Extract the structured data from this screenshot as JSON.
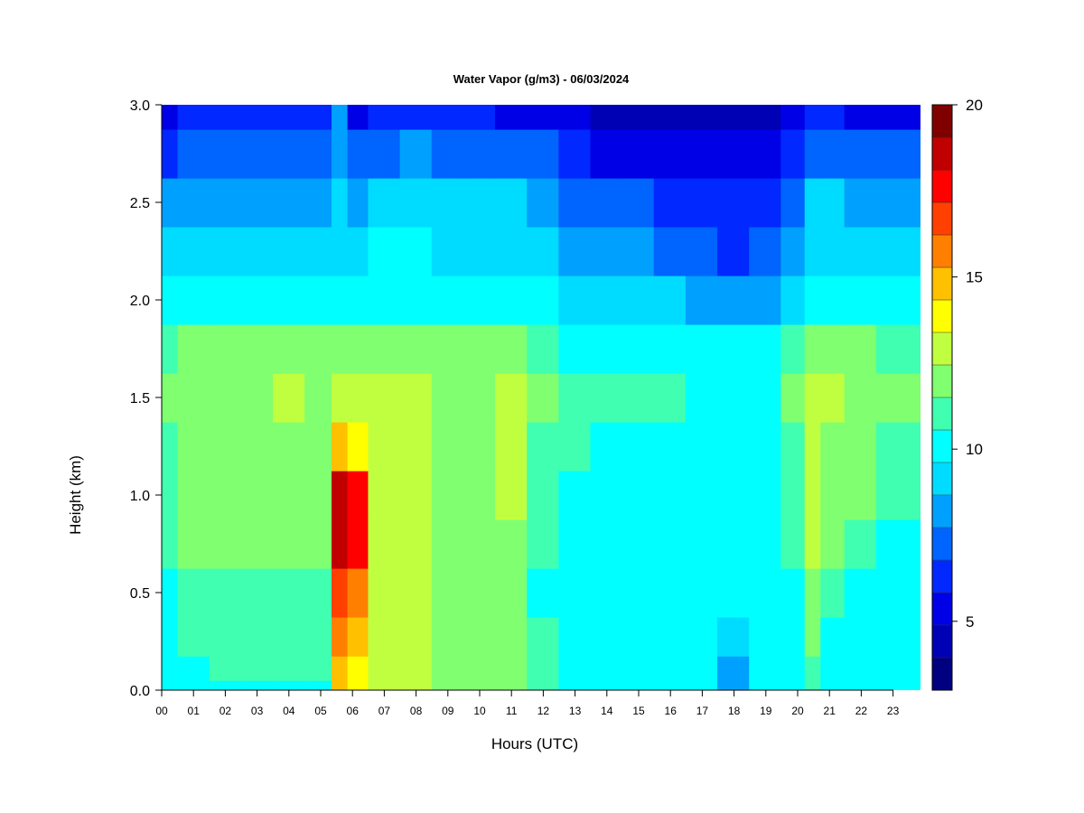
{
  "chart_data": {
    "type": "heatmap",
    "title": "Water Vapor (g/m3) - 06/03/2024",
    "xlabel": "Hours (UTC)",
    "ylabel": "Height (km)",
    "x_ticks": [
      "00",
      "01",
      "02",
      "03",
      "04",
      "05",
      "06",
      "07",
      "08",
      "09",
      "10",
      "11",
      "12",
      "13",
      "14",
      "15",
      "16",
      "17",
      "18",
      "19",
      "20",
      "21",
      "22",
      "23"
    ],
    "y_ticks": [
      "0.0",
      "0.5",
      "1.0",
      "1.5",
      "2.0",
      "2.5",
      "3.0"
    ],
    "xlim": [
      0,
      23.9
    ],
    "ylim": [
      0,
      3.0
    ],
    "colorbar": {
      "range": [
        3,
        20
      ],
      "ticks": [
        "5",
        "10",
        "15",
        "20"
      ],
      "colors": [
        "#000080",
        "#0000b4",
        "#0000e6",
        "#0028ff",
        "#0064ff",
        "#00a0ff",
        "#00dcff",
        "#00ffff",
        "#40ffb0",
        "#80ff70",
        "#c0ff40",
        "#ffff00",
        "#ffc000",
        "#ff8000",
        "#ff4000",
        "#ff0000",
        "#c00000",
        "#800000"
      ]
    },
    "column_times_utc": [
      0,
      1,
      2,
      3,
      4,
      5,
      5.7,
      6,
      7,
      8,
      9,
      10,
      11,
      12,
      13,
      14,
      15,
      16,
      17,
      18,
      19,
      20,
      20.5,
      21,
      22,
      23
    ],
    "height_levels_km": [
      0.0,
      0.1,
      0.25,
      0.5,
      0.75,
      1.0,
      1.25,
      1.5,
      1.75,
      2.0,
      2.25,
      2.5,
      2.75,
      3.0
    ],
    "values_gm3": [
      [
        10.5,
        10.5,
        10.5,
        10.5,
        10.5,
        10.5,
        15.0,
        14.0,
        12.5,
        12.5,
        12.0,
        12.0,
        12.0,
        11.0,
        10.5,
        10.0,
        10.0,
        10.0,
        10.0,
        8.5,
        10.0,
        10.0,
        11.0,
        10.5,
        10.5,
        10.5
      ],
      [
        10.5,
        10.5,
        11.0,
        11.0,
        11.0,
        11.0,
        15.0,
        14.0,
        12.5,
        12.5,
        12.0,
        12.0,
        12.0,
        11.0,
        10.5,
        10.0,
        10.0,
        10.0,
        10.0,
        8.5,
        10.0,
        10.0,
        11.0,
        10.5,
        10.5,
        10.5
      ],
      [
        10.5,
        11.0,
        11.0,
        11.0,
        11.0,
        11.0,
        16.0,
        15.0,
        12.5,
        12.5,
        12.0,
        12.0,
        12.0,
        11.0,
        10.0,
        10.0,
        10.0,
        10.0,
        10.0,
        9.5,
        10.0,
        10.0,
        11.5,
        10.5,
        10.5,
        10.0
      ],
      [
        10.5,
        11.0,
        11.0,
        11.0,
        11.0,
        11.0,
        17.0,
        16.0,
        12.5,
        12.5,
        11.5,
        11.5,
        11.5,
        10.5,
        10.5,
        10.5,
        10.5,
        10.5,
        10.5,
        10.0,
        10.0,
        10.5,
        12.0,
        11.0,
        10.5,
        10.0
      ],
      [
        11.0,
        11.5,
        11.5,
        11.5,
        12.0,
        11.5,
        19.0,
        18.0,
        12.5,
        13.0,
        12.0,
        11.5,
        12.0,
        11.0,
        10.5,
        10.5,
        10.5,
        10.5,
        10.5,
        10.5,
        10.5,
        11.0,
        12.5,
        11.5,
        11.0,
        10.5
      ],
      [
        11.0,
        11.5,
        12.0,
        12.0,
        12.0,
        11.5,
        19.0,
        18.0,
        12.5,
        13.0,
        12.0,
        12.0,
        12.5,
        11.0,
        10.5,
        10.5,
        10.5,
        10.5,
        10.5,
        10.5,
        10.5,
        11.0,
        13.0,
        12.0,
        11.5,
        11.0
      ],
      [
        11.0,
        11.5,
        12.0,
        12.0,
        12.0,
        12.0,
        15.0,
        14.0,
        12.5,
        13.0,
        12.0,
        12.0,
        12.5,
        11.0,
        11.0,
        10.5,
        10.5,
        10.5,
        10.5,
        10.5,
        10.5,
        11.0,
        13.0,
        12.0,
        11.5,
        11.0
      ],
      [
        11.5,
        12.0,
        12.0,
        12.0,
        12.5,
        12.0,
        12.5,
        12.5,
        12.5,
        13.0,
        12.0,
        12.0,
        13.0,
        11.5,
        11.0,
        11.0,
        11.0,
        11.0,
        10.5,
        10.5,
        10.5,
        11.5,
        13.0,
        12.5,
        12.0,
        11.5
      ],
      [
        11.0,
        11.5,
        11.5,
        11.5,
        12.0,
        11.5,
        12.0,
        12.0,
        12.0,
        12.0,
        11.5,
        11.5,
        12.0,
        11.0,
        10.5,
        10.5,
        10.5,
        10.5,
        10.5,
        10.0,
        10.0,
        11.0,
        12.0,
        12.0,
        11.5,
        11.0
      ],
      [
        10.0,
        10.0,
        10.0,
        10.0,
        10.5,
        10.0,
        10.0,
        10.5,
        10.5,
        10.5,
        10.0,
        10.0,
        10.0,
        10.0,
        9.5,
        9.0,
        9.0,
        9.0,
        8.5,
        8.0,
        8.5,
        9.5,
        10.0,
        10.0,
        10.0,
        10.0
      ],
      [
        9.5,
        9.5,
        9.5,
        9.5,
        9.5,
        9.5,
        9.5,
        9.5,
        10.0,
        10.0,
        9.5,
        9.5,
        9.5,
        9.0,
        8.5,
        8.0,
        8.0,
        7.5,
        7.0,
        6.5,
        7.5,
        8.5,
        9.5,
        9.5,
        9.5,
        9.5
      ],
      [
        8.5,
        8.5,
        8.5,
        8.5,
        8.5,
        8.5,
        9.0,
        8.5,
        9.0,
        9.5,
        9.0,
        9.0,
        9.0,
        8.5,
        7.5,
        7.0,
        7.0,
        6.5,
        6.0,
        6.0,
        6.5,
        7.5,
        9.0,
        9.0,
        8.5,
        8.5
      ],
      [
        6.5,
        7.0,
        7.0,
        7.0,
        7.0,
        7.0,
        8.0,
        7.0,
        7.5,
        8.0,
        7.5,
        7.5,
        7.0,
        7.0,
        6.0,
        5.5,
        5.5,
        5.5,
        5.0,
        5.0,
        5.5,
        6.5,
        7.5,
        7.5,
        7.0,
        7.0
      ],
      [
        5.5,
        6.0,
        6.0,
        6.0,
        6.0,
        6.0,
        8.0,
        5.5,
        6.0,
        6.5,
        6.0,
        6.0,
        5.5,
        5.5,
        5.0,
        4.5,
        4.5,
        4.5,
        4.0,
        4.0,
        4.5,
        5.0,
        6.0,
        6.0,
        5.5,
        5.5
      ]
    ]
  }
}
